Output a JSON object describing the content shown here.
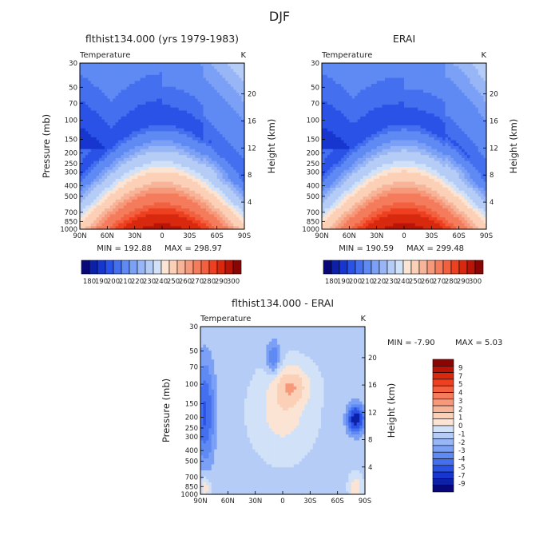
{
  "figure": {
    "super_title": "DJF",
    "unit": "K"
  },
  "colors": {
    "temperature_scale": [
      "#08087a",
      "#0d21a8",
      "#1736cf",
      "#2a52e6",
      "#4470f0",
      "#5f8af3",
      "#7ba0f5",
      "#98b6f5",
      "#b4ccf6",
      "#d1e1f7",
      "#fbe4d3",
      "#fbd0b6",
      "#f8b498",
      "#f6987a",
      "#f47c5c",
      "#f2603f",
      "#ee4020",
      "#d8290f",
      "#b81508",
      "#8c0505"
    ],
    "difference_scale": [
      "#08087a",
      "#0d21a8",
      "#1736cf",
      "#2a52e6",
      "#4470f0",
      "#5f8af3",
      "#7ba0f5",
      "#98b6f5",
      "#b4ccf6",
      "#d1e1f7",
      "#fbe4d3",
      "#fbd0b6",
      "#f8b498",
      "#f6987a",
      "#f47c5c",
      "#f2603f",
      "#ee4020",
      "#d8290f",
      "#b81508",
      "#8c0505"
    ]
  },
  "chart_data": [
    {
      "type": "heatmap",
      "title": "flthist134.000 (yrs 1979-1983)",
      "subtitle": "Temperature",
      "unit": "K",
      "xlabel": "",
      "ylabel": "Pressure (mb)",
      "y2label": "Height (km)",
      "x_ticks": [
        "90N",
        "60N",
        "30N",
        "0",
        "30S",
        "60S",
        "90S"
      ],
      "y_ticks": [
        "30",
        "50",
        "70",
        "100",
        "150",
        "200",
        "250",
        "300",
        "400",
        "500",
        "700",
        "850",
        "1000"
      ],
      "y2_ticks": [
        "20",
        "16",
        "12",
        "8",
        "4"
      ],
      "ylim": [
        1000,
        30
      ],
      "min_label": "MIN = 192.88",
      "max_label": "MAX = 298.97",
      "min": 192.88,
      "max": 298.97,
      "colorbar_labels": [
        "180",
        "190",
        "200",
        "210",
        "220",
        "230",
        "240",
        "250",
        "260",
        "270",
        "280",
        "290",
        "300"
      ],
      "contour_levels": [
        180,
        185,
        190,
        195,
        200,
        205,
        210,
        215,
        220,
        225,
        230,
        235,
        240,
        245,
        250,
        255,
        260,
        265,
        270,
        275,
        280,
        285,
        290,
        295,
        300
      ]
    },
    {
      "type": "heatmap",
      "title": "ERAI",
      "subtitle": "Temperature",
      "unit": "K",
      "xlabel": "",
      "ylabel": "",
      "y2label": "Height (km)",
      "x_ticks": [
        "90N",
        "60N",
        "30N",
        "0",
        "30S",
        "60S",
        "90S"
      ],
      "y_ticks": [
        "30",
        "50",
        "70",
        "100",
        "150",
        "200",
        "250",
        "300",
        "400",
        "500",
        "700",
        "850",
        "1000"
      ],
      "y2_ticks": [
        "20",
        "16",
        "12",
        "8",
        "4"
      ],
      "ylim": [
        1000,
        30
      ],
      "min_label": "MIN = 190.59",
      "max_label": "MAX = 299.48",
      "min": 190.59,
      "max": 299.48,
      "colorbar_labels": [
        "180",
        "190",
        "200",
        "210",
        "220",
        "230",
        "240",
        "250",
        "260",
        "270",
        "280",
        "290",
        "300"
      ],
      "contour_levels": [
        180,
        185,
        190,
        195,
        200,
        205,
        210,
        215,
        220,
        225,
        230,
        235,
        240,
        245,
        250,
        255,
        260,
        265,
        270,
        275,
        280,
        285,
        290,
        295,
        300
      ]
    },
    {
      "type": "heatmap",
      "title": "flthist134.000 - ERAI",
      "subtitle": "Temperature",
      "unit": "K",
      "xlabel": "",
      "ylabel": "Pressure (mb)",
      "y2label": "Height (km)",
      "x_ticks": [
        "90N",
        "60N",
        "30N",
        "0",
        "30S",
        "60S",
        "90S"
      ],
      "y_ticks": [
        "30",
        "50",
        "70",
        "100",
        "150",
        "200",
        "250",
        "300",
        "400",
        "500",
        "700",
        "850",
        "1000"
      ],
      "y2_ticks": [
        "20",
        "16",
        "12",
        "8",
        "4"
      ],
      "ylim": [
        1000,
        30
      ],
      "min_label": "MIN =   -7.90",
      "max_label": "MAX =    5.03",
      "min": -7.9,
      "max": 5.03,
      "colorbar_labels": [
        "9",
        "7",
        "5",
        "4",
        "3",
        "2",
        "1",
        "0",
        "-1",
        "-2",
        "-3",
        "-4",
        "-5",
        "-7",
        "-9"
      ],
      "contour_levels": [
        -9,
        -7,
        -5,
        -4,
        -3,
        -2,
        -1,
        0,
        1,
        2,
        3,
        4,
        5,
        7,
        9
      ]
    }
  ]
}
